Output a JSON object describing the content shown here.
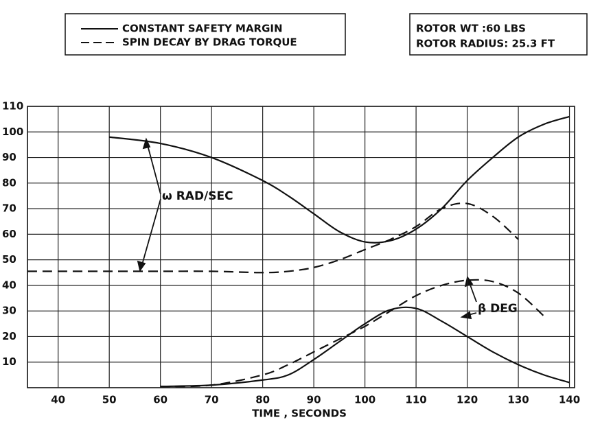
{
  "chart_data": {
    "type": "line",
    "legend": [
      {
        "label": "CONSTANT SAFETY MARGIN",
        "style": "solid"
      },
      {
        "label": "SPIN DECAY BY DRAG TORQUE",
        "style": "dashed"
      }
    ],
    "info": [
      "ROTOR WT :60 LBS",
      "ROTOR RADIUS: 25.3 FT"
    ],
    "annotations": [
      "ω RAD/SEC",
      "β DEG"
    ],
    "x_label": "TIME , SECONDS",
    "x": [
      34,
      40,
      50,
      60,
      70,
      80,
      85,
      90,
      95,
      100,
      105,
      110,
      115,
      120,
      125,
      130,
      135,
      140
    ],
    "series": [
      {
        "style": "solid",
        "color": "#111111",
        "values": [
          null,
          null,
          98,
          95.5,
          90,
          81,
          75,
          68,
          61,
          57,
          57.5,
          62,
          70,
          81,
          90,
          98,
          103,
          106
        ]
      },
      {
        "style": "dashed",
        "color": "#111111",
        "values": [
          45.5,
          45.5,
          45.5,
          45.5,
          45.5,
          45,
          45.5,
          47,
          50,
          54,
          58,
          63,
          70,
          72,
          67,
          58,
          null,
          null
        ]
      },
      {
        "style": "solid",
        "color": "#111111",
        "values": [
          null,
          null,
          null,
          0.5,
          1,
          3,
          5,
          11,
          18,
          25,
          30.5,
          31,
          26,
          20,
          14,
          9,
          5,
          2
        ]
      },
      {
        "style": "dashed",
        "color": "#111111",
        "values": [
          null,
          null,
          null,
          0.5,
          1,
          5,
          9,
          14,
          19,
          24,
          30,
          36,
          40,
          42,
          41.5,
          37,
          28,
          null
        ]
      }
    ],
    "xlim": [
      34,
      141
    ],
    "xticks": [
      40,
      50,
      60,
      70,
      80,
      90,
      100,
      110,
      120,
      130,
      140
    ],
    "ylim": [
      0,
      110
    ],
    "yticks": [
      10,
      20,
      30,
      40,
      50,
      60,
      70,
      80,
      90,
      100,
      110
    ],
    "grid": true
  }
}
